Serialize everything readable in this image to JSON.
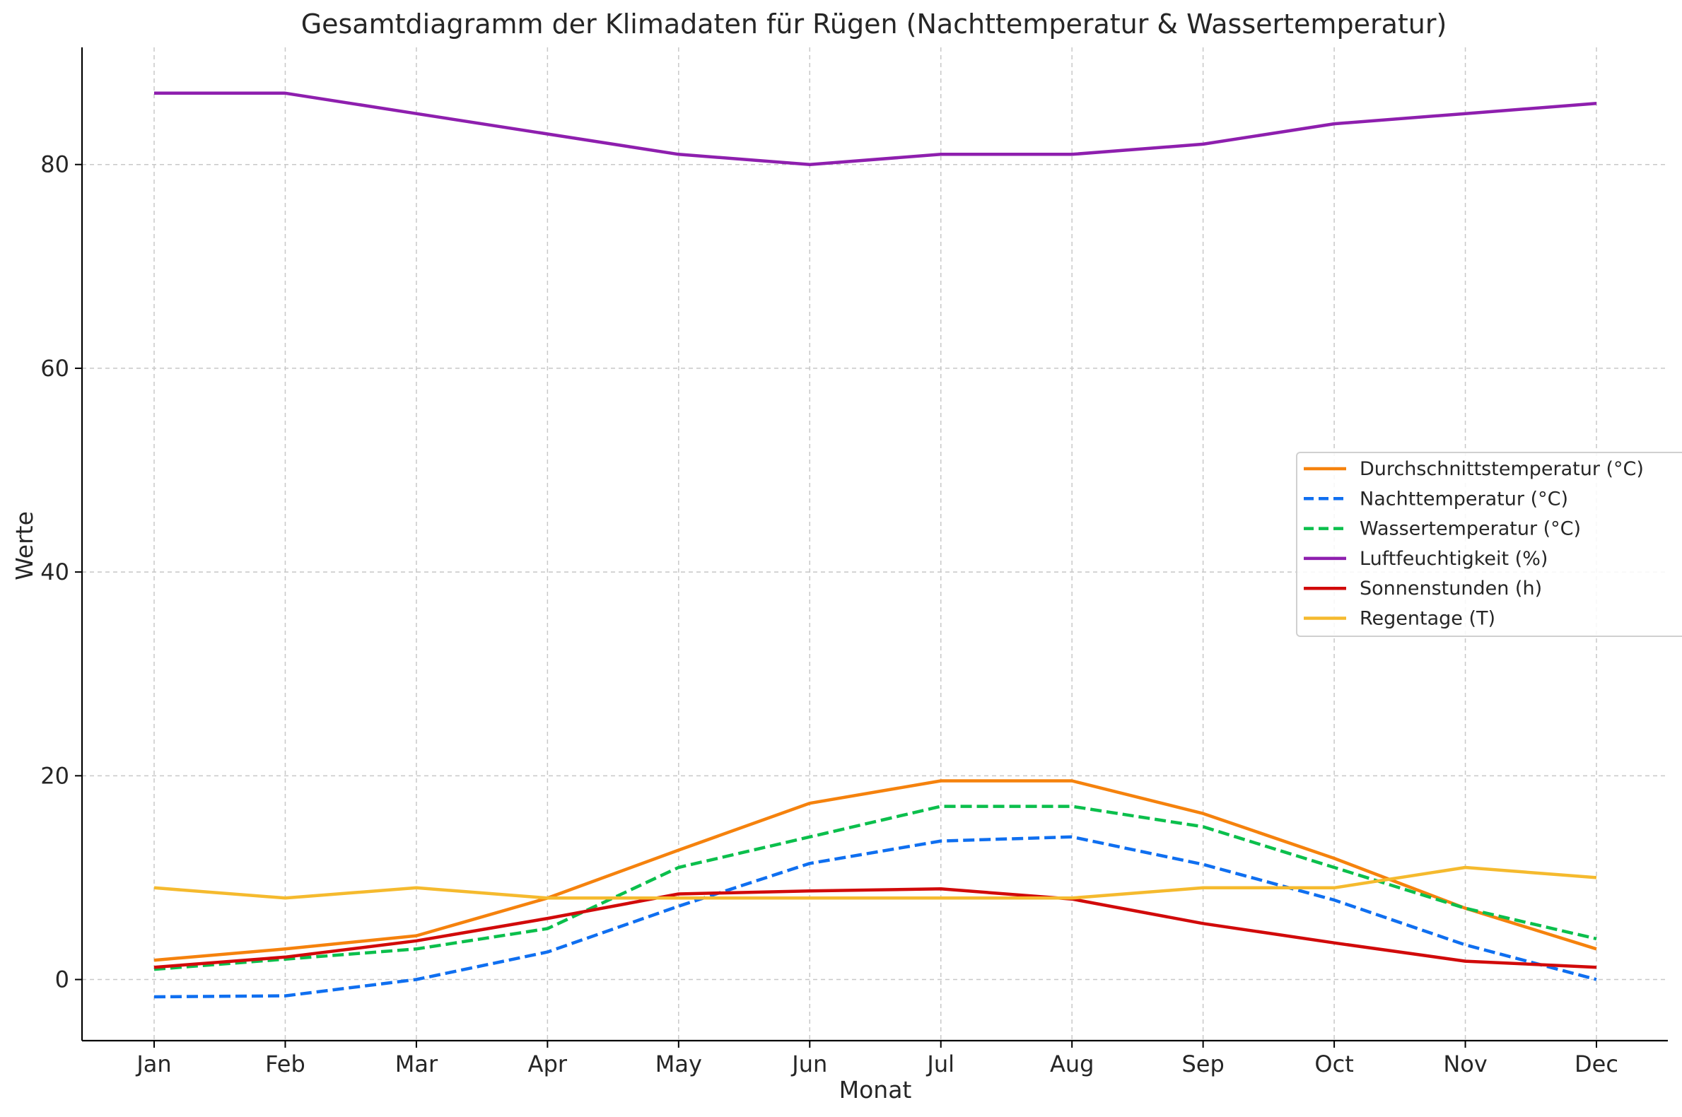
{
  "chart_data": {
    "type": "line",
    "title": "Gesamtdiagramm der Klimadaten für Rügen (Nachttemperatur & Wassertemperatur)",
    "xlabel": "Monat",
    "ylabel": "Werte",
    "categories": [
      "Jan",
      "Feb",
      "Mar",
      "Apr",
      "May",
      "Jun",
      "Jul",
      "Aug",
      "Sep",
      "Oct",
      "Nov",
      "Dec"
    ],
    "ylim": [
      -6,
      91.5
    ],
    "yticks": [
      0,
      20,
      40,
      60,
      80
    ],
    "grid": true,
    "legend_position": "center-right",
    "series": [
      {
        "name": "Durchschnittstemperatur (°C)",
        "color": "#F5820D",
        "dash": "solid",
        "values": [
          1.9,
          3.0,
          4.3,
          8.0,
          12.7,
          17.3,
          19.5,
          19.5,
          16.3,
          11.9,
          7.0,
          3.0
        ]
      },
      {
        "name": "Nachttemperatur (°C)",
        "color": "#0F6FF0",
        "dash": "dashed",
        "values": [
          -1.7,
          -1.6,
          0.0,
          2.7,
          7.2,
          11.4,
          13.6,
          14.0,
          11.3,
          7.8,
          3.4,
          0.0
        ]
      },
      {
        "name": "Wassertemperatur (°C)",
        "color": "#0BBF4C",
        "dash": "dashed",
        "values": [
          1.0,
          2.0,
          3.0,
          5.0,
          11.0,
          14.0,
          17.0,
          17.0,
          15.0,
          11.0,
          7.0,
          4.0
        ]
      },
      {
        "name": "Luftfeuchtigkeit (%)",
        "color": "#8E1FAE",
        "dash": "solid",
        "values": [
          87,
          87,
          85,
          83,
          81,
          80,
          81,
          81,
          82,
          84,
          85,
          86
        ]
      },
      {
        "name": "Sonnenstunden (h)",
        "color": "#D10A0A",
        "dash": "solid",
        "values": [
          1.2,
          2.2,
          3.8,
          6.0,
          8.4,
          8.7,
          8.9,
          7.9,
          5.5,
          3.6,
          1.8,
          1.2
        ]
      },
      {
        "name": "Regentage (T)",
        "color": "#F5BA2E",
        "dash": "solid",
        "values": [
          9,
          8,
          9,
          8,
          8,
          8,
          8,
          8,
          9,
          9,
          11,
          10
        ]
      }
    ]
  }
}
